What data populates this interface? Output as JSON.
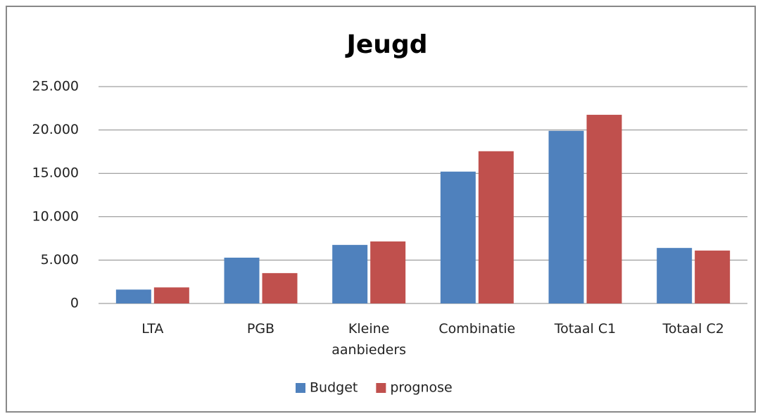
{
  "chart_data": {
    "type": "bar",
    "title": "Jeugd",
    "categories": [
      "LTA",
      "PGB",
      "Kleine aanbieders",
      "Combinatie",
      "Totaal C1",
      "Totaal C2"
    ],
    "series": [
      {
        "name": "Budget",
        "color": "#4f81bd",
        "values": [
          1600,
          5280,
          6750,
          15200,
          19900,
          6400
        ]
      },
      {
        "name": "prognose",
        "color": "#c0504d",
        "values": [
          1850,
          3500,
          7150,
          17550,
          21750,
          6100
        ]
      }
    ],
    "ylim": [
      0,
      25000
    ],
    "yticks": [
      0,
      {
        "value": 5000,
        "label": "5.000"
      },
      {
        "value": 10000,
        "label": "10.000"
      },
      {
        "value": 15000,
        "label": "15.000"
      },
      {
        "value": 20000,
        "label": "20.000"
      },
      {
        "value": 25000,
        "label": "25.000"
      }
    ],
    "grid": true,
    "legend": "bottom"
  }
}
